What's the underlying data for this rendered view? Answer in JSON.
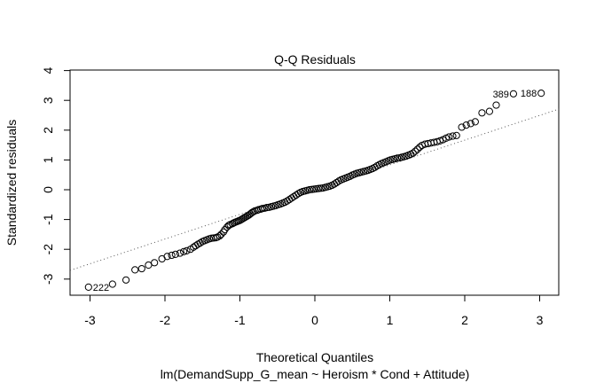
{
  "chart_data": {
    "type": "scatter",
    "title": "Q-Q Residuals",
    "xlabel": "Theoretical Quantiles",
    "ylabel": "Standardized residuals",
    "subtitle": "lm(DemandSupp_G_mean ~ Heroism * Cond + Attitude)",
    "xlim": [
      -3.3,
      3.3
    ],
    "ylim": [
      -3.5,
      4.0
    ],
    "xticks": [
      "-3",
      "-2",
      "-1",
      "0",
      "1",
      "2",
      "3"
    ],
    "yticks": [
      "-3",
      "-2",
      "-1",
      "0",
      "1",
      "2",
      "3",
      "4"
    ],
    "grid": false,
    "reference_line": {
      "style": "dotted",
      "intercept": 0.0,
      "slope": 0.82
    },
    "labeled_points": [
      {
        "label": "222",
        "x": -3.02,
        "y": -3.27
      },
      {
        "label": "389",
        "x": 2.65,
        "y": 3.22
      },
      {
        "label": "188",
        "x": 3.02,
        "y": 3.24
      }
    ],
    "points": [
      [
        -3.02,
        -3.27
      ],
      [
        -2.7,
        -3.17
      ],
      [
        -2.52,
        -3.03
      ],
      [
        -2.4,
        -2.69
      ],
      [
        -2.31,
        -2.65
      ],
      [
        -2.22,
        -2.53
      ],
      [
        -2.14,
        -2.45
      ],
      [
        -2.04,
        -2.32
      ],
      [
        -1.97,
        -2.24
      ],
      [
        -1.91,
        -2.2
      ],
      [
        -1.86,
        -2.17
      ],
      [
        -1.8,
        -2.13
      ],
      [
        -1.75,
        -2.08
      ],
      [
        -1.71,
        -2.05
      ],
      [
        -1.66,
        -2.0
      ],
      [
        -1.62,
        -1.93
      ],
      [
        -1.59,
        -1.88
      ],
      [
        -1.56,
        -1.83
      ],
      [
        -1.53,
        -1.79
      ],
      [
        -1.5,
        -1.74
      ],
      [
        -1.47,
        -1.71
      ],
      [
        -1.44,
        -1.68
      ],
      [
        -1.41,
        -1.65
      ],
      [
        -1.38,
        -1.63
      ],
      [
        -1.35,
        -1.62
      ],
      [
        -1.32,
        -1.61
      ],
      [
        -1.3,
        -1.59
      ],
      [
        -1.27,
        -1.55
      ],
      [
        -1.25,
        -1.5
      ],
      [
        -1.22,
        -1.42
      ],
      [
        -1.2,
        -1.34
      ],
      [
        -1.17,
        -1.25
      ],
      [
        -1.15,
        -1.2
      ],
      [
        -1.13,
        -1.17
      ],
      [
        -1.1,
        -1.14
      ],
      [
        -1.08,
        -1.11
      ],
      [
        -1.06,
        -1.09
      ],
      [
        -1.04,
        -1.07
      ],
      [
        -1.02,
        -1.05
      ],
      [
        -1.0,
        -1.03
      ],
      [
        -0.98,
        -1.0
      ],
      [
        -0.96,
        -0.97
      ],
      [
        -0.94,
        -0.94
      ],
      [
        -0.92,
        -0.91
      ],
      [
        -0.9,
        -0.88
      ],
      [
        -0.88,
        -0.85
      ],
      [
        -0.86,
        -0.81
      ],
      [
        -0.84,
        -0.77
      ],
      [
        -0.82,
        -0.74
      ],
      [
        -0.8,
        -0.71
      ],
      [
        -0.77,
        -0.69
      ],
      [
        -0.75,
        -0.67
      ],
      [
        -0.72,
        -0.65
      ],
      [
        -0.7,
        -0.63
      ],
      [
        -0.67,
        -0.62
      ],
      [
        -0.64,
        -0.6
      ],
      [
        -0.61,
        -0.59
      ],
      [
        -0.58,
        -0.57
      ],
      [
        -0.55,
        -0.55
      ],
      [
        -0.52,
        -0.53
      ],
      [
        -0.49,
        -0.5
      ],
      [
        -0.46,
        -0.48
      ],
      [
        -0.43,
        -0.45
      ],
      [
        -0.4,
        -0.42
      ],
      [
        -0.37,
        -0.38
      ],
      [
        -0.34,
        -0.33
      ],
      [
        -0.31,
        -0.28
      ],
      [
        -0.28,
        -0.23
      ],
      [
        -0.25,
        -0.18
      ],
      [
        -0.22,
        -0.13
      ],
      [
        -0.19,
        -0.09
      ],
      [
        -0.16,
        -0.06
      ],
      [
        -0.13,
        -0.04
      ],
      [
        -0.1,
        -0.02
      ],
      [
        -0.07,
        0.0
      ],
      [
        -0.04,
        0.01
      ],
      [
        -0.01,
        0.02
      ],
      [
        0.02,
        0.03
      ],
      [
        0.05,
        0.04
      ],
      [
        0.08,
        0.05
      ],
      [
        0.11,
        0.06
      ],
      [
        0.14,
        0.08
      ],
      [
        0.17,
        0.1
      ],
      [
        0.2,
        0.12
      ],
      [
        0.23,
        0.15
      ],
      [
        0.26,
        0.19
      ],
      [
        0.29,
        0.24
      ],
      [
        0.32,
        0.29
      ],
      [
        0.35,
        0.33
      ],
      [
        0.38,
        0.36
      ],
      [
        0.41,
        0.39
      ],
      [
        0.44,
        0.42
      ],
      [
        0.47,
        0.45
      ],
      [
        0.5,
        0.49
      ],
      [
        0.53,
        0.52
      ],
      [
        0.56,
        0.55
      ],
      [
        0.59,
        0.57
      ],
      [
        0.62,
        0.59
      ],
      [
        0.65,
        0.61
      ],
      [
        0.68,
        0.63
      ],
      [
        0.71,
        0.65
      ],
      [
        0.74,
        0.68
      ],
      [
        0.77,
        0.71
      ],
      [
        0.8,
        0.75
      ],
      [
        0.83,
        0.8
      ],
      [
        0.86,
        0.84
      ],
      [
        0.89,
        0.88
      ],
      [
        0.92,
        0.91
      ],
      [
        0.95,
        0.94
      ],
      [
        0.98,
        0.97
      ],
      [
        1.01,
        1.0
      ],
      [
        1.04,
        1.02
      ],
      [
        1.07,
        1.04
      ],
      [
        1.1,
        1.06
      ],
      [
        1.13,
        1.07
      ],
      [
        1.16,
        1.09
      ],
      [
        1.19,
        1.11
      ],
      [
        1.22,
        1.13
      ],
      [
        1.25,
        1.16
      ],
      [
        1.28,
        1.19
      ],
      [
        1.31,
        1.23
      ],
      [
        1.34,
        1.29
      ],
      [
        1.37,
        1.36
      ],
      [
        1.4,
        1.43
      ],
      [
        1.43,
        1.49
      ],
      [
        1.47,
        1.53
      ],
      [
        1.51,
        1.55
      ],
      [
        1.55,
        1.57
      ],
      [
        1.59,
        1.59
      ],
      [
        1.63,
        1.61
      ],
      [
        1.67,
        1.64
      ],
      [
        1.71,
        1.68
      ],
      [
        1.75,
        1.73
      ],
      [
        1.79,
        1.77
      ],
      [
        1.84,
        1.8
      ],
      [
        1.89,
        1.82
      ],
      [
        1.96,
        2.1
      ],
      [
        2.02,
        2.17
      ],
      [
        2.08,
        2.22
      ],
      [
        2.14,
        2.28
      ],
      [
        2.23,
        2.58
      ],
      [
        2.33,
        2.63
      ],
      [
        2.42,
        2.84
      ],
      [
        2.65,
        3.22
      ],
      [
        3.02,
        3.24
      ]
    ]
  }
}
